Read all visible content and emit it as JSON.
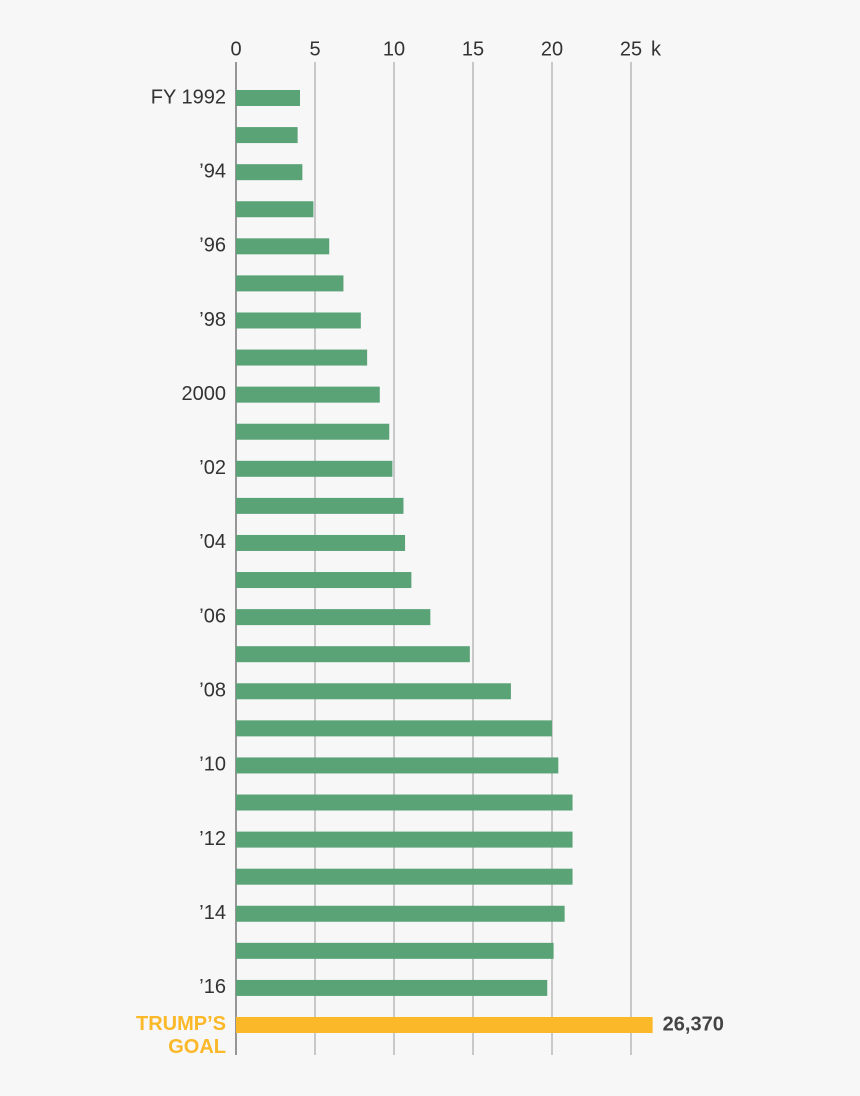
{
  "chart_data": {
    "type": "hbar",
    "x_unit": "k",
    "categories": [
      "FY 1992",
      null,
      "’94",
      null,
      "’96",
      null,
      "’98",
      null,
      "2000",
      null,
      "’02",
      null,
      "’04",
      null,
      "’06",
      null,
      "’08",
      null,
      "’10",
      null,
      "’12",
      null,
      "’14",
      null,
      "’16",
      "TRUMP’S GOAL"
    ],
    "values": [
      4.05,
      3.9,
      4.2,
      4.9,
      5.9,
      6.8,
      7.9,
      8.3,
      9.1,
      9.7,
      9.9,
      10.6,
      10.7,
      11.1,
      12.3,
      14.8,
      17.4,
      20.0,
      20.4,
      21.3,
      21.3,
      21.3,
      20.8,
      20.1,
      19.7,
      26.37
    ],
    "value_labels": [
      null,
      null,
      null,
      null,
      null,
      null,
      null,
      null,
      null,
      null,
      null,
      null,
      null,
      null,
      null,
      null,
      null,
      null,
      null,
      null,
      null,
      null,
      null,
      null,
      null,
      "26,370"
    ],
    "colors": [
      "#5aa377",
      "#5aa377",
      "#5aa377",
      "#5aa377",
      "#5aa377",
      "#5aa377",
      "#5aa377",
      "#5aa377",
      "#5aa377",
      "#5aa377",
      "#5aa377",
      "#5aa377",
      "#5aa377",
      "#5aa377",
      "#5aa377",
      "#5aa377",
      "#5aa377",
      "#5aa377",
      "#5aa377",
      "#5aa377",
      "#5aa377",
      "#5aa377",
      "#5aa377",
      "#5aa377",
      "#5aa377",
      "#fbb829"
    ],
    "xlim": [
      0,
      25
    ],
    "xticks": [
      0,
      5,
      10,
      15,
      20,
      25
    ],
    "grid": true
  }
}
